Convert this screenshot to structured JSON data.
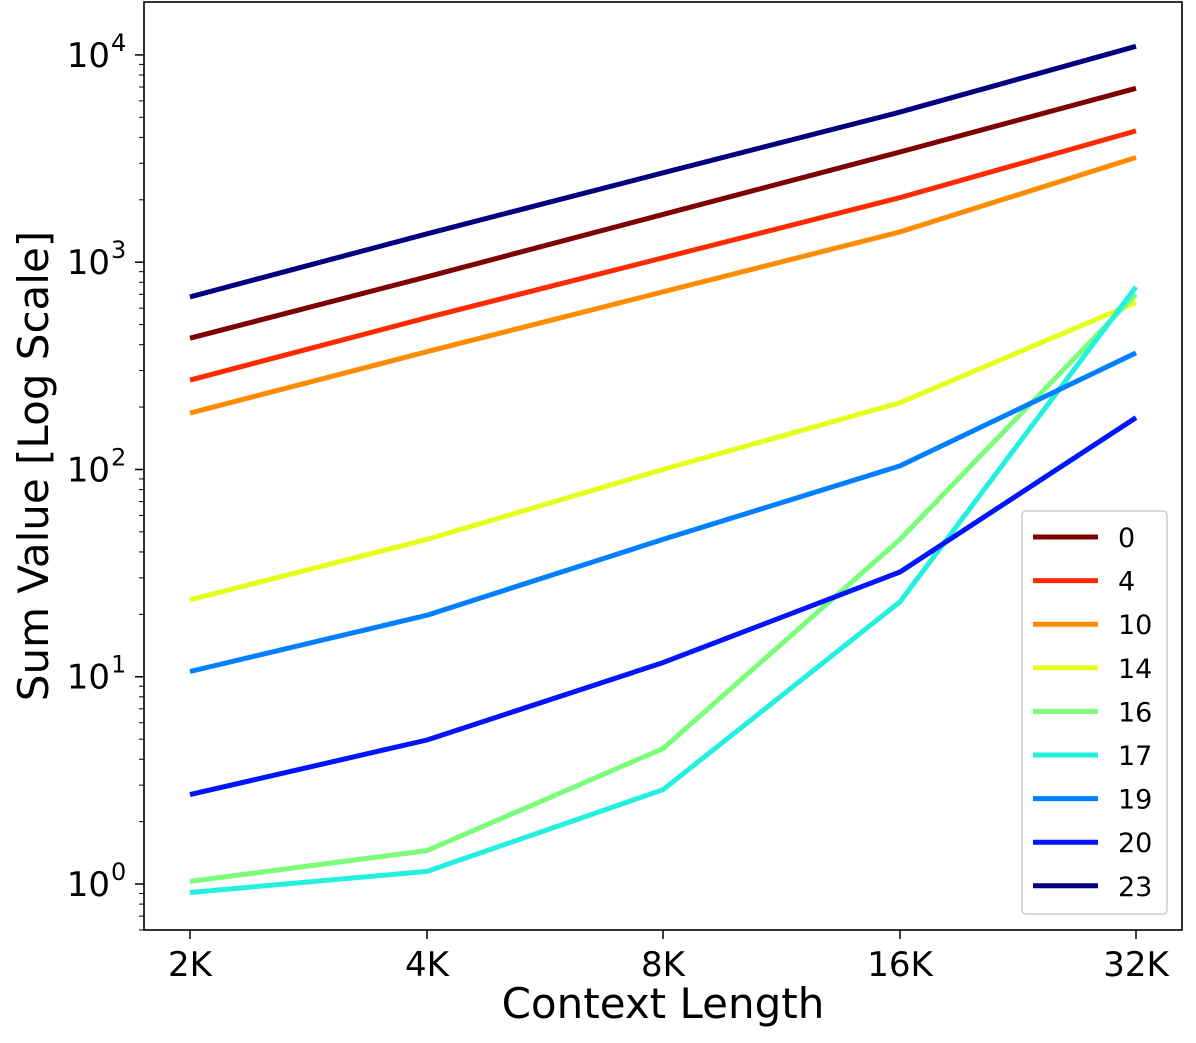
{
  "chart_data": {
    "type": "line",
    "title": "",
    "xlabel": "Context Length",
    "ylabel": "Sum Value [Log Scale]",
    "yscale": "log",
    "ylim": [
      0.6,
      18000
    ],
    "grid": false,
    "legend_position": "lower-right",
    "categories": [
      "2K",
      "4K",
      "8K",
      "16K",
      "32K"
    ],
    "yticks": [
      {
        "value": 1,
        "base": "10",
        "exp": "0"
      },
      {
        "value": 10,
        "base": "10",
        "exp": "1"
      },
      {
        "value": 100,
        "base": "10",
        "exp": "2"
      },
      {
        "value": 1000,
        "base": "10",
        "exp": "3"
      },
      {
        "value": 10000,
        "base": "10",
        "exp": "4"
      }
    ],
    "series": [
      {
        "name": "0",
        "color": "#7f0000",
        "values": [
          430,
          850,
          1700,
          3400,
          6900
        ]
      },
      {
        "name": "4",
        "color": "#ff2a00",
        "values": [
          270,
          540,
          1050,
          2050,
          4300
        ]
      },
      {
        "name": "10",
        "color": "#ff8c00",
        "values": [
          187,
          370,
          720,
          1400,
          3200
        ]
      },
      {
        "name": "14",
        "color": "#e6ff1a",
        "values": [
          23.5,
          46,
          100,
          210,
          640
        ]
      },
      {
        "name": "16",
        "color": "#7bff7b",
        "values": [
          1.03,
          1.45,
          4.5,
          46,
          700
        ]
      },
      {
        "name": "17",
        "color": "#24f0e0",
        "values": [
          0.91,
          1.15,
          2.85,
          23,
          760
        ]
      },
      {
        "name": "19",
        "color": "#0080ff",
        "values": [
          10.6,
          19.8,
          46,
          104,
          365
        ]
      },
      {
        "name": "20",
        "color": "#0014ff",
        "values": [
          2.7,
          4.95,
          11.7,
          32,
          178
        ]
      },
      {
        "name": "23",
        "color": "#000080",
        "values": [
          680,
          1370,
          2700,
          5300,
          11000
        ]
      }
    ]
  }
}
